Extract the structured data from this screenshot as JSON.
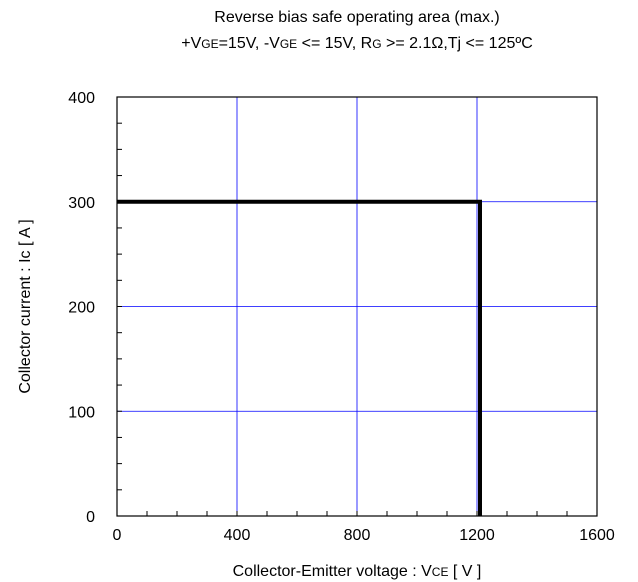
{
  "chart_data": {
    "type": "line",
    "title": "Reverse bias safe operating area (max.)",
    "subtitle": {
      "p1": "+V",
      "p1_sub": "GE",
      "p2": "=15V, -V",
      "p2_sub": "GE",
      "p3": " <= 15V, R",
      "p3_sub": "G",
      "p4": " >= 2.1Ω,Tj <= 125ºC"
    },
    "xlabel": {
      "main": "Collector-Emitter voltage : V",
      "sub": "CE",
      "unit": " [ V ]"
    },
    "ylabel": "Collector current : Ic [ A ]",
    "xlim": [
      0,
      1600
    ],
    "ylim": [
      0,
      400
    ],
    "x_ticks": [
      0,
      400,
      800,
      1200,
      1600
    ],
    "y_ticks": [
      0,
      100,
      200,
      300,
      400
    ],
    "grid": true,
    "grid_color": "#0000ff",
    "line_color": "#000000",
    "series": [
      {
        "x": [
          0,
          1210,
          1210
        ],
        "y": [
          300,
          300,
          0
        ]
      }
    ]
  }
}
